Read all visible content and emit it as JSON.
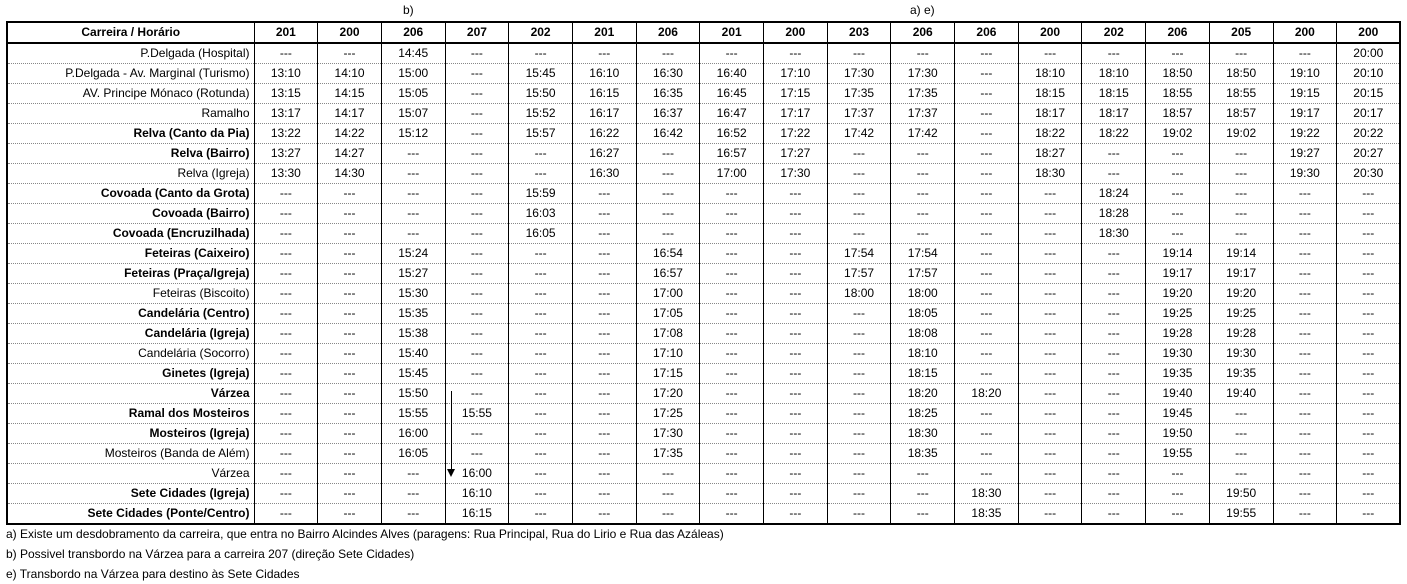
{
  "top_notes": {
    "b": "b)",
    "ae": "a) e)"
  },
  "header": [
    "Carreira / Horário",
    "201",
    "200",
    "206",
    "207",
    "202",
    "201",
    "206",
    "201",
    "200",
    "203",
    "206",
    "206",
    "200",
    "202",
    "206",
    "205",
    "200",
    "200"
  ],
  "rows": [
    {
      "stop": "P.Delgada (Hospital)",
      "bold": false,
      "times": [
        "---",
        "---",
        "14:45",
        "---",
        "---",
        "---",
        "---",
        "---",
        "---",
        "---",
        "---",
        "---",
        "---",
        "---",
        "---",
        "---",
        "---",
        "20:00"
      ]
    },
    {
      "stop": "P.Delgada - Av. Marginal (Turismo)",
      "bold": false,
      "times": [
        "13:10",
        "14:10",
        "15:00",
        "---",
        "15:45",
        "16:10",
        "16:30",
        "16:40",
        "17:10",
        "17:30",
        "17:30",
        "---",
        "18:10",
        "18:10",
        "18:50",
        "18:50",
        "19:10",
        "20:10"
      ]
    },
    {
      "stop": "AV. Principe Mónaco (Rotunda)",
      "bold": false,
      "times": [
        "13:15",
        "14:15",
        "15:05",
        "---",
        "15:50",
        "16:15",
        "16:35",
        "16:45",
        "17:15",
        "17:35",
        "17:35",
        "---",
        "18:15",
        "18:15",
        "18:55",
        "18:55",
        "19:15",
        "20:15"
      ]
    },
    {
      "stop": "Ramalho",
      "bold": false,
      "times": [
        "13:17",
        "14:17",
        "15:07",
        "---",
        "15:52",
        "16:17",
        "16:37",
        "16:47",
        "17:17",
        "17:37",
        "17:37",
        "---",
        "18:17",
        "18:17",
        "18:57",
        "18:57",
        "19:17",
        "20:17"
      ]
    },
    {
      "stop": "Relva (Canto da Pia)",
      "bold": true,
      "times": [
        "13:22",
        "14:22",
        "15:12",
        "---",
        "15:57",
        "16:22",
        "16:42",
        "16:52",
        "17:22",
        "17:42",
        "17:42",
        "---",
        "18:22",
        "18:22",
        "19:02",
        "19:02",
        "19:22",
        "20:22"
      ]
    },
    {
      "stop": "Relva (Bairro)",
      "bold": true,
      "times": [
        "13:27",
        "14:27",
        "---",
        "---",
        "---",
        "16:27",
        "---",
        "16:57",
        "17:27",
        "---",
        "---",
        "---",
        "18:27",
        "---",
        "---",
        "---",
        "19:27",
        "20:27"
      ]
    },
    {
      "stop": "Relva (Igreja)",
      "bold": false,
      "times": [
        "13:30",
        "14:30",
        "---",
        "---",
        "---",
        "16:30",
        "---",
        "17:00",
        "17:30",
        "---",
        "---",
        "---",
        "18:30",
        "---",
        "---",
        "---",
        "19:30",
        "20:30"
      ]
    },
    {
      "stop": "Covoada (Canto da Grota)",
      "bold": true,
      "times": [
        "---",
        "---",
        "---",
        "---",
        "15:59",
        "---",
        "---",
        "---",
        "---",
        "---",
        "---",
        "---",
        "---",
        "18:24",
        "---",
        "---",
        "---",
        "---"
      ]
    },
    {
      "stop": "Covoada (Bairro)",
      "bold": true,
      "times": [
        "---",
        "---",
        "---",
        "---",
        "16:03",
        "---",
        "---",
        "---",
        "---",
        "---",
        "---",
        "---",
        "---",
        "18:28",
        "---",
        "---",
        "---",
        "---"
      ]
    },
    {
      "stop": "Covoada (Encruzilhada)",
      "bold": true,
      "times": [
        "---",
        "---",
        "---",
        "---",
        "16:05",
        "---",
        "---",
        "---",
        "---",
        "---",
        "---",
        "---",
        "---",
        "18:30",
        "---",
        "---",
        "---",
        "---"
      ]
    },
    {
      "stop": "Feteiras (Caixeiro)",
      "bold": true,
      "times": [
        "---",
        "---",
        "15:24",
        "---",
        "---",
        "---",
        "16:54",
        "---",
        "---",
        "17:54",
        "17:54",
        "---",
        "---",
        "---",
        "19:14",
        "19:14",
        "---",
        "---"
      ]
    },
    {
      "stop": "Feteiras (Praça/Igreja)",
      "bold": true,
      "times": [
        "---",
        "---",
        "15:27",
        "---",
        "---",
        "---",
        "16:57",
        "---",
        "---",
        "17:57",
        "17:57",
        "---",
        "---",
        "---",
        "19:17",
        "19:17",
        "---",
        "---"
      ]
    },
    {
      "stop": "Feteiras (Biscoito)",
      "bold": false,
      "times": [
        "---",
        "---",
        "15:30",
        "---",
        "---",
        "---",
        "17:00",
        "---",
        "---",
        "18:00",
        "18:00",
        "---",
        "---",
        "---",
        "19:20",
        "19:20",
        "---",
        "---"
      ]
    },
    {
      "stop": "Candelária (Centro)",
      "bold": true,
      "times": [
        "---",
        "---",
        "15:35",
        "---",
        "---",
        "---",
        "17:05",
        "---",
        "---",
        "---",
        "18:05",
        "---",
        "---",
        "---",
        "19:25",
        "19:25",
        "---",
        "---"
      ]
    },
    {
      "stop": "Candelária (Igreja)",
      "bold": true,
      "times": [
        "---",
        "---",
        "15:38",
        "---",
        "---",
        "---",
        "17:08",
        "---",
        "---",
        "---",
        "18:08",
        "---",
        "---",
        "---",
        "19:28",
        "19:28",
        "---",
        "---"
      ]
    },
    {
      "stop": "Candelária (Socorro)",
      "bold": false,
      "times": [
        "---",
        "---",
        "15:40",
        "---",
        "---",
        "---",
        "17:10",
        "---",
        "---",
        "---",
        "18:10",
        "---",
        "---",
        "---",
        "19:30",
        "19:30",
        "---",
        "---"
      ]
    },
    {
      "stop": "Ginetes (Igreja)",
      "bold": true,
      "times": [
        "---",
        "---",
        "15:45",
        "---",
        "---",
        "---",
        "17:15",
        "---",
        "---",
        "---",
        "18:15",
        "---",
        "---",
        "---",
        "19:35",
        "19:35",
        "---",
        "---"
      ]
    },
    {
      "stop": "Várzea",
      "bold": true,
      "times": [
        "---",
        "---",
        "15:50",
        "---",
        "---",
        "---",
        "17:20",
        "---",
        "---",
        "---",
        "18:20",
        "18:20",
        "---",
        "---",
        "19:40",
        "19:40",
        "---",
        "---"
      ]
    },
    {
      "stop": "Ramal dos Mosteiros",
      "bold": true,
      "times": [
        "---",
        "---",
        "15:55",
        "15:55",
        "---",
        "---",
        "17:25",
        "---",
        "---",
        "---",
        "18:25",
        "---",
        "---",
        "---",
        "19:45",
        "---",
        "---",
        "---"
      ]
    },
    {
      "stop": "Mosteiros (Igreja)",
      "bold": true,
      "times": [
        "---",
        "---",
        "16:00",
        "---",
        "---",
        "---",
        "17:30",
        "---",
        "---",
        "---",
        "18:30",
        "---",
        "---",
        "---",
        "19:50",
        "---",
        "---",
        "---"
      ]
    },
    {
      "stop": "Mosteiros (Banda de Além)",
      "bold": false,
      "times": [
        "---",
        "---",
        "16:05",
        "---",
        "---",
        "---",
        "17:35",
        "---",
        "---",
        "---",
        "18:35",
        "---",
        "---",
        "---",
        "19:55",
        "---",
        "---",
        "---"
      ]
    },
    {
      "stop": "Várzea",
      "bold": false,
      "times": [
        "---",
        "---",
        "---",
        "16:00",
        "---",
        "---",
        "---",
        "---",
        "---",
        "---",
        "---",
        "---",
        "---",
        "---",
        "---",
        "---",
        "---",
        "---"
      ]
    },
    {
      "stop": "Sete Cidades (Igreja)",
      "bold": true,
      "times": [
        "---",
        "---",
        "---",
        "16:10",
        "---",
        "---",
        "---",
        "---",
        "---",
        "---",
        "---",
        "18:30",
        "---",
        "---",
        "---",
        "19:50",
        "---",
        "---"
      ]
    },
    {
      "stop": "Sete Cidades (Ponte/Centro)",
      "bold": true,
      "times": [
        "---",
        "---",
        "---",
        "16:15",
        "---",
        "---",
        "---",
        "---",
        "---",
        "---",
        "---",
        "18:35",
        "---",
        "---",
        "---",
        "19:55",
        "---",
        "---"
      ]
    }
  ],
  "footnotes": [
    "a) Existe um desdobramento da carreira, que entra no Bairro Alcindes Alves (paragens: Rua Principal, Rua do Lirio e Rua das Azáleas)",
    "b) Possivel transbordo na Várzea para a carreira 207 (direção Sete Cidades)",
    "e) Transbordo na Várzea para destino às Sete Cidades"
  ]
}
